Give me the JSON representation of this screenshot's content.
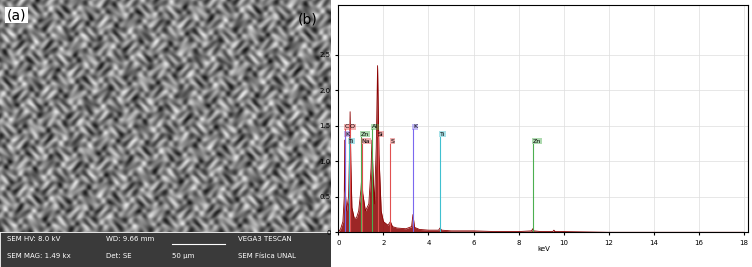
{
  "image_panel": {
    "label": "(a)",
    "info_bar": [
      [
        "SEM HV: 8.0 kV",
        "WD: 9.66 mm",
        "",
        "VEGA3 TESCAN"
      ],
      [
        "SEM MAG: 1.49 kx",
        "Det: SE",
        "50 µm",
        "SEM Física UNAL"
      ]
    ]
  },
  "chart_data": {
    "type": "line",
    "title": "(b)",
    "x_label": "keV",
    "x": [
      0.0,
      0.1,
      0.2,
      0.26,
      0.28,
      0.3,
      0.36,
      0.45,
      0.5,
      0.52,
      0.55,
      0.6,
      0.7,
      0.8,
      0.9,
      1.0,
      1.04,
      1.08,
      1.2,
      1.35,
      1.45,
      1.49,
      1.53,
      1.6,
      1.68,
      1.74,
      1.8,
      1.9,
      2.0,
      2.2,
      2.31,
      2.4,
      2.6,
      3.0,
      3.25,
      3.31,
      3.38,
      3.6,
      4.0,
      4.45,
      4.51,
      4.58,
      5.0,
      6.0,
      7.0,
      8.0,
      8.58,
      8.63,
      8.68,
      9.0,
      9.52,
      9.57,
      9.62,
      10.0,
      12.0,
      14.0,
      16.0,
      18.0
    ],
    "values": [
      0.0,
      0.05,
      0.15,
      0.5,
      1.3,
      0.6,
      0.3,
      0.5,
      1.2,
      1.7,
      1.0,
      0.35,
      0.2,
      0.2,
      0.3,
      0.6,
      0.8,
      0.55,
      0.3,
      0.4,
      0.9,
      1.3,
      0.9,
      0.4,
      1.2,
      2.35,
      1.1,
      0.3,
      0.15,
      0.1,
      0.15,
      0.08,
      0.06,
      0.05,
      0.08,
      0.25,
      0.07,
      0.04,
      0.03,
      0.03,
      0.06,
      0.03,
      0.02,
      0.02,
      0.01,
      0.01,
      0.02,
      0.05,
      0.02,
      0.01,
      0.01,
      0.03,
      0.01,
      0.01,
      0.0,
      0.0,
      0.0,
      0.0
    ],
    "color": "#8b0000",
    "annotations": [
      {
        "label": "C",
        "x": 0.28,
        "color": "#e05050"
      },
      {
        "label": "K",
        "x": 0.3,
        "color": "#7b68ee"
      },
      {
        "label": "Ti",
        "x": 0.45,
        "color": "#40c0d0"
      },
      {
        "label": "O",
        "x": 0.52,
        "color": "#e05050"
      },
      {
        "label": "Zn",
        "x": 1.01,
        "color": "#4caf50"
      },
      {
        "label": "Na",
        "x": 1.04,
        "color": "#e05050"
      },
      {
        "label": "Al",
        "x": 1.49,
        "color": "#4caf50"
      },
      {
        "label": "Si",
        "x": 1.74,
        "color": "#e05050"
      },
      {
        "label": "S",
        "x": 2.31,
        "color": "#e05050"
      },
      {
        "label": "K",
        "x": 3.31,
        "color": "#7b68ee"
      },
      {
        "label": "Ti",
        "x": 4.51,
        "color": "#40c0d0"
      },
      {
        "label": "Zn",
        "x": 8.63,
        "color": "#4caf50"
      }
    ],
    "xlim": [
      0,
      18.2
    ],
    "ylim": [
      0,
      3.2
    ],
    "xticks": [
      0,
      2,
      4,
      6,
      8,
      10,
      12,
      14,
      16,
      18
    ],
    "yticks": [
      0,
      0.5,
      1.0,
      1.5,
      2.0,
      2.5
    ],
    "grid": true
  }
}
